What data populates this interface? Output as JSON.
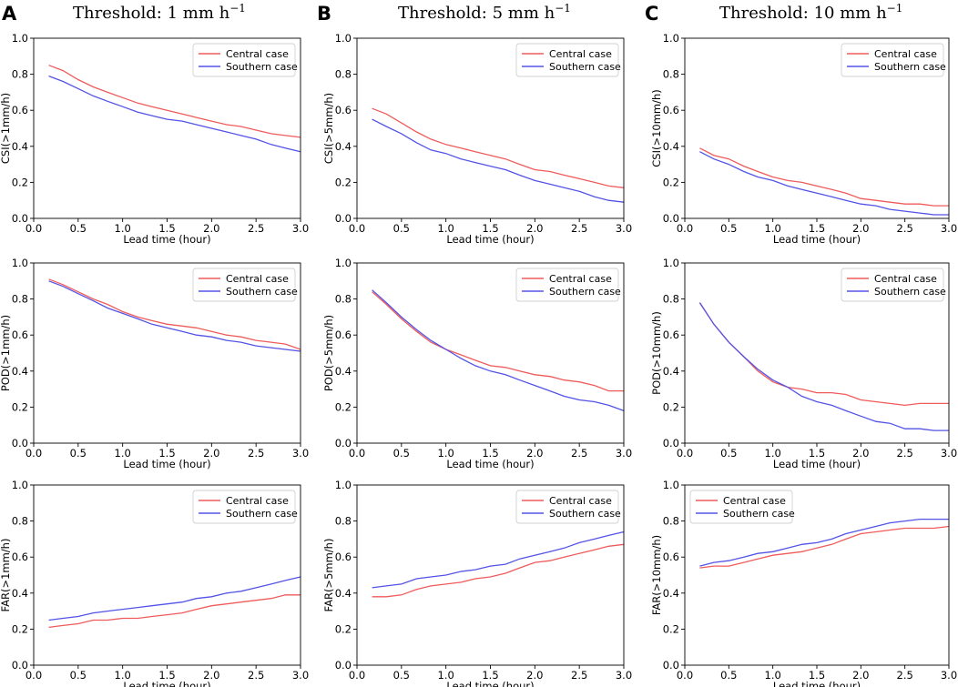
{
  "columns": [
    {
      "letter": "A",
      "title": "Threshold: 1 mm h",
      "title_sup": "−1"
    },
    {
      "letter": "B",
      "title": "Threshold: 5 mm h",
      "title_sup": "−1"
    },
    {
      "letter": "C",
      "title": "Threshold: 10 mm h",
      "title_sup": "−1"
    }
  ],
  "colors": {
    "central": "#ef5b5b",
    "southern": "#5353e6"
  },
  "chart_data": [
    {
      "type": "line",
      "id": "csi-1",
      "xlabel": "Lead time (hour)",
      "ylabel": "CSI(>1mm/h)",
      "xlim": [
        0,
        3
      ],
      "ylim": [
        0,
        1
      ],
      "xticks": [
        "0.0",
        "0.5",
        "1.0",
        "1.5",
        "2.0",
        "2.5",
        "3.0"
      ],
      "yticks": [
        "0.0",
        "0.2",
        "0.4",
        "0.6",
        "0.8",
        "1.0"
      ],
      "legend": "top-right",
      "x": [
        0.17,
        0.33,
        0.5,
        0.67,
        0.83,
        1.0,
        1.17,
        1.33,
        1.5,
        1.67,
        1.83,
        2.0,
        2.17,
        2.33,
        2.5,
        2.67,
        2.83,
        3.0
      ],
      "series": [
        {
          "name": "Central case",
          "values": [
            0.85,
            0.82,
            0.77,
            0.73,
            0.7,
            0.67,
            0.64,
            0.62,
            0.6,
            0.58,
            0.56,
            0.54,
            0.52,
            0.51,
            0.49,
            0.47,
            0.46,
            0.45
          ]
        },
        {
          "name": "Southern case",
          "values": [
            0.79,
            0.76,
            0.72,
            0.68,
            0.65,
            0.62,
            0.59,
            0.57,
            0.55,
            0.54,
            0.52,
            0.5,
            0.48,
            0.46,
            0.44,
            0.41,
            0.39,
            0.37
          ]
        }
      ]
    },
    {
      "type": "line",
      "id": "csi-5",
      "xlabel": "Lead time (hour)",
      "ylabel": "CSI(>5mm/h)",
      "xlim": [
        0,
        3
      ],
      "ylim": [
        0,
        1
      ],
      "xticks": [
        "0.0",
        "0.5",
        "1.0",
        "1.5",
        "2.0",
        "2.5",
        "3.0"
      ],
      "yticks": [
        "0.0",
        "0.2",
        "0.4",
        "0.6",
        "0.8",
        "1.0"
      ],
      "legend": "top-right",
      "x": [
        0.17,
        0.33,
        0.5,
        0.67,
        0.83,
        1.0,
        1.17,
        1.33,
        1.5,
        1.67,
        1.83,
        2.0,
        2.17,
        2.33,
        2.5,
        2.67,
        2.83,
        3.0
      ],
      "series": [
        {
          "name": "Central case",
          "values": [
            0.61,
            0.58,
            0.53,
            0.48,
            0.44,
            0.41,
            0.39,
            0.37,
            0.35,
            0.33,
            0.3,
            0.27,
            0.26,
            0.24,
            0.22,
            0.2,
            0.18,
            0.17
          ]
        },
        {
          "name": "Southern case",
          "values": [
            0.55,
            0.51,
            0.47,
            0.42,
            0.38,
            0.36,
            0.33,
            0.31,
            0.29,
            0.27,
            0.24,
            0.21,
            0.19,
            0.17,
            0.15,
            0.12,
            0.1,
            0.09
          ]
        }
      ]
    },
    {
      "type": "line",
      "id": "csi-10",
      "xlabel": "Lead time (hour)",
      "ylabel": "CSI(>10mm/h)",
      "xlim": [
        0,
        3
      ],
      "ylim": [
        0,
        1
      ],
      "xticks": [
        "0.0",
        "0.5",
        "1.0",
        "1.5",
        "2.0",
        "2.5",
        "3.0"
      ],
      "yticks": [
        "0.0",
        "0.2",
        "0.4",
        "0.6",
        "0.8",
        "1.0"
      ],
      "legend": "top-right",
      "x": [
        0.17,
        0.33,
        0.5,
        0.67,
        0.83,
        1.0,
        1.17,
        1.33,
        1.5,
        1.67,
        1.83,
        2.0,
        2.17,
        2.33,
        2.5,
        2.67,
        2.83,
        3.0
      ],
      "series": [
        {
          "name": "Central case",
          "values": [
            0.39,
            0.35,
            0.33,
            0.29,
            0.26,
            0.23,
            0.21,
            0.2,
            0.18,
            0.16,
            0.14,
            0.11,
            0.1,
            0.09,
            0.08,
            0.08,
            0.07,
            0.07
          ]
        },
        {
          "name": "Southern case",
          "values": [
            0.37,
            0.33,
            0.3,
            0.26,
            0.23,
            0.21,
            0.18,
            0.16,
            0.14,
            0.12,
            0.1,
            0.08,
            0.07,
            0.05,
            0.04,
            0.03,
            0.02,
            0.02
          ]
        }
      ]
    },
    {
      "type": "line",
      "id": "pod-1",
      "xlabel": "Lead time (hour)",
      "ylabel": "POD(>1mm/h)",
      "xlim": [
        0,
        3
      ],
      "ylim": [
        0,
        1
      ],
      "xticks": [
        "0.0",
        "0.5",
        "1.0",
        "1.5",
        "2.0",
        "2.5",
        "3.0"
      ],
      "yticks": [
        "0.0",
        "0.2",
        "0.4",
        "0.6",
        "0.8",
        "1.0"
      ],
      "legend": "top-right",
      "x": [
        0.17,
        0.33,
        0.5,
        0.67,
        0.83,
        1.0,
        1.17,
        1.33,
        1.5,
        1.67,
        1.83,
        2.0,
        2.17,
        2.33,
        2.5,
        2.67,
        2.83,
        3.0
      ],
      "series": [
        {
          "name": "Central case",
          "values": [
            0.91,
            0.88,
            0.84,
            0.8,
            0.77,
            0.73,
            0.7,
            0.68,
            0.66,
            0.65,
            0.64,
            0.62,
            0.6,
            0.59,
            0.57,
            0.56,
            0.55,
            0.52
          ]
        },
        {
          "name": "Southern case",
          "values": [
            0.9,
            0.87,
            0.83,
            0.79,
            0.75,
            0.72,
            0.69,
            0.66,
            0.64,
            0.62,
            0.6,
            0.59,
            0.57,
            0.56,
            0.54,
            0.53,
            0.52,
            0.51
          ]
        }
      ]
    },
    {
      "type": "line",
      "id": "pod-5",
      "xlabel": "Lead time (hour)",
      "ylabel": "POD(>5mm/h)",
      "xlim": [
        0,
        3
      ],
      "ylim": [
        0,
        1
      ],
      "xticks": [
        "0.0",
        "0.5",
        "1.0",
        "1.5",
        "2.0",
        "2.5",
        "3.0"
      ],
      "yticks": [
        "0.0",
        "0.2",
        "0.4",
        "0.6",
        "0.8",
        "1.0"
      ],
      "legend": "top-right",
      "x": [
        0.17,
        0.33,
        0.5,
        0.67,
        0.83,
        1.0,
        1.17,
        1.33,
        1.5,
        1.67,
        1.83,
        2.0,
        2.17,
        2.33,
        2.5,
        2.67,
        2.83,
        3.0
      ],
      "series": [
        {
          "name": "Central case",
          "values": [
            0.84,
            0.77,
            0.69,
            0.62,
            0.56,
            0.52,
            0.49,
            0.46,
            0.43,
            0.42,
            0.4,
            0.38,
            0.37,
            0.35,
            0.34,
            0.32,
            0.29,
            0.29
          ]
        },
        {
          "name": "Southern case",
          "values": [
            0.85,
            0.78,
            0.7,
            0.63,
            0.57,
            0.52,
            0.47,
            0.43,
            0.4,
            0.38,
            0.35,
            0.32,
            0.29,
            0.26,
            0.24,
            0.23,
            0.21,
            0.18
          ]
        }
      ]
    },
    {
      "type": "line",
      "id": "pod-10",
      "xlabel": "Lead time (hour)",
      "ylabel": "POD(>10mm/h)",
      "xlim": [
        0,
        3
      ],
      "ylim": [
        0,
        1
      ],
      "xticks": [
        "0.0",
        "0.5",
        "1.0",
        "1.5",
        "2.0",
        "2.5",
        "3.0"
      ],
      "yticks": [
        "0.0",
        "0.2",
        "0.4",
        "0.6",
        "0.8",
        "1.0"
      ],
      "legend": "top-right",
      "x": [
        0.17,
        0.33,
        0.5,
        0.67,
        0.83,
        1.0,
        1.17,
        1.33,
        1.5,
        1.67,
        1.83,
        2.0,
        2.17,
        2.33,
        2.5,
        2.67,
        2.83,
        3.0
      ],
      "series": [
        {
          "name": "Central case",
          "values": [
            0.78,
            0.66,
            0.56,
            0.48,
            0.4,
            0.34,
            0.31,
            0.3,
            0.28,
            0.28,
            0.27,
            0.24,
            0.23,
            0.22,
            0.21,
            0.22,
            0.22,
            0.22
          ]
        },
        {
          "name": "Southern case",
          "values": [
            0.78,
            0.66,
            0.56,
            0.48,
            0.41,
            0.35,
            0.31,
            0.26,
            0.23,
            0.21,
            0.18,
            0.15,
            0.12,
            0.11,
            0.08,
            0.08,
            0.07,
            0.07
          ]
        }
      ]
    },
    {
      "type": "line",
      "id": "far-1",
      "xlabel": "Lead time (hour)",
      "ylabel": "FAR(>1mm/h)",
      "xlim": [
        0,
        3
      ],
      "ylim": [
        0,
        1
      ],
      "xticks": [
        "0.0",
        "0.5",
        "1.0",
        "1.5",
        "2.0",
        "2.5",
        "3.0"
      ],
      "yticks": [
        "0.0",
        "0.2",
        "0.4",
        "0.6",
        "0.8",
        "1.0"
      ],
      "legend": "top-right",
      "x": [
        0.17,
        0.33,
        0.5,
        0.67,
        0.83,
        1.0,
        1.17,
        1.33,
        1.5,
        1.67,
        1.83,
        2.0,
        2.17,
        2.33,
        2.5,
        2.67,
        2.83,
        3.0
      ],
      "series": [
        {
          "name": "Central case",
          "values": [
            0.21,
            0.22,
            0.23,
            0.25,
            0.25,
            0.26,
            0.26,
            0.27,
            0.28,
            0.29,
            0.31,
            0.33,
            0.34,
            0.35,
            0.36,
            0.37,
            0.39,
            0.39
          ]
        },
        {
          "name": "Southern case",
          "values": [
            0.25,
            0.26,
            0.27,
            0.29,
            0.3,
            0.31,
            0.32,
            0.33,
            0.34,
            0.35,
            0.37,
            0.38,
            0.4,
            0.41,
            0.43,
            0.45,
            0.47,
            0.49
          ]
        }
      ]
    },
    {
      "type": "line",
      "id": "far-5",
      "xlabel": "Lead time (hour)",
      "ylabel": "FAR(>5mm/h)",
      "xlim": [
        0,
        3
      ],
      "ylim": [
        0,
        1
      ],
      "xticks": [
        "0.0",
        "0.5",
        "1.0",
        "1.5",
        "2.0",
        "2.5",
        "3.0"
      ],
      "yticks": [
        "0.0",
        "0.2",
        "0.4",
        "0.6",
        "0.8",
        "1.0"
      ],
      "legend": "top-right",
      "x": [
        0.17,
        0.33,
        0.5,
        0.67,
        0.83,
        1.0,
        1.17,
        1.33,
        1.5,
        1.67,
        1.83,
        2.0,
        2.17,
        2.33,
        2.5,
        2.67,
        2.83,
        3.0
      ],
      "series": [
        {
          "name": "Central case",
          "values": [
            0.38,
            0.38,
            0.39,
            0.42,
            0.44,
            0.45,
            0.46,
            0.48,
            0.49,
            0.51,
            0.54,
            0.57,
            0.58,
            0.6,
            0.62,
            0.64,
            0.66,
            0.67
          ]
        },
        {
          "name": "Southern case",
          "values": [
            0.43,
            0.44,
            0.45,
            0.48,
            0.49,
            0.5,
            0.52,
            0.53,
            0.55,
            0.56,
            0.59,
            0.61,
            0.63,
            0.65,
            0.68,
            0.7,
            0.72,
            0.74
          ]
        }
      ]
    },
    {
      "type": "line",
      "id": "far-10",
      "xlabel": "Lead time (hour)",
      "ylabel": "FAR(>10mm/h)",
      "xlim": [
        0,
        3
      ],
      "ylim": [
        0,
        1
      ],
      "xticks": [
        "0.0",
        "0.5",
        "1.0",
        "1.5",
        "2.0",
        "2.5",
        "3.0"
      ],
      "yticks": [
        "0.0",
        "0.2",
        "0.4",
        "0.6",
        "0.8",
        "1.0"
      ],
      "legend": "top-left",
      "x": [
        0.17,
        0.33,
        0.5,
        0.67,
        0.83,
        1.0,
        1.17,
        1.33,
        1.5,
        1.67,
        1.83,
        2.0,
        2.17,
        2.33,
        2.5,
        2.67,
        2.83,
        3.0
      ],
      "series": [
        {
          "name": "Central case",
          "values": [
            0.54,
            0.55,
            0.55,
            0.57,
            0.59,
            0.61,
            0.62,
            0.63,
            0.65,
            0.67,
            0.7,
            0.73,
            0.74,
            0.75,
            0.76,
            0.76,
            0.76,
            0.77
          ]
        },
        {
          "name": "Southern case",
          "values": [
            0.55,
            0.57,
            0.58,
            0.6,
            0.62,
            0.63,
            0.65,
            0.67,
            0.68,
            0.7,
            0.73,
            0.75,
            0.77,
            0.79,
            0.8,
            0.81,
            0.81,
            0.81
          ]
        }
      ]
    }
  ]
}
